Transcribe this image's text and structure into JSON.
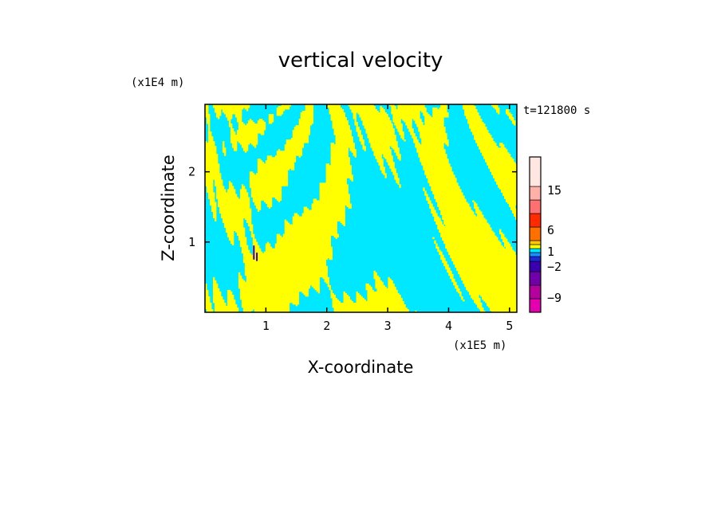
{
  "chart_data": {
    "type": "heatmap",
    "title": "vertical velocity",
    "xlabel": "X-coordinate",
    "ylabel": "Z-coordinate",
    "x_unit": "(x1E5 m)",
    "y_unit": "(x1E4 m)",
    "time_label": "t=121800 s",
    "xlim": [
      0,
      5.12
    ],
    "ylim": [
      0,
      2.96
    ],
    "x_ticks": [
      1,
      2,
      3,
      4,
      5
    ],
    "y_ticks": [
      1,
      2
    ],
    "x_tick_labels": [
      "1",
      "2",
      "3",
      "4",
      "5"
    ],
    "y_tick_labels": [
      "1",
      "2"
    ],
    "colorbar": {
      "levels": [
        -9,
        -7,
        -5,
        -3,
        -2,
        -1,
        0,
        1,
        2,
        4,
        6,
        10,
        15,
        20
      ],
      "colors": [
        "#e400b0",
        "#b4009c",
        "#7000a8",
        "#3a00b0",
        "#1a2ad8",
        "#1c8cff",
        "#00e8ff",
        "#ffff00",
        "#ffc800",
        "#ff7000",
        "#ff2a00",
        "#ff7070",
        "#ffb0a8",
        "#ffe6e0"
      ],
      "tick_labels": [
        "15",
        "6",
        "1",
        "-2",
        "-9"
      ],
      "tick_values": [
        15,
        6,
        1,
        -2,
        -9
      ]
    },
    "field_colors": {
      "positive": "#ffff00",
      "negative": "#00e8ff",
      "strong_negative": "#3a00b0"
    }
  }
}
